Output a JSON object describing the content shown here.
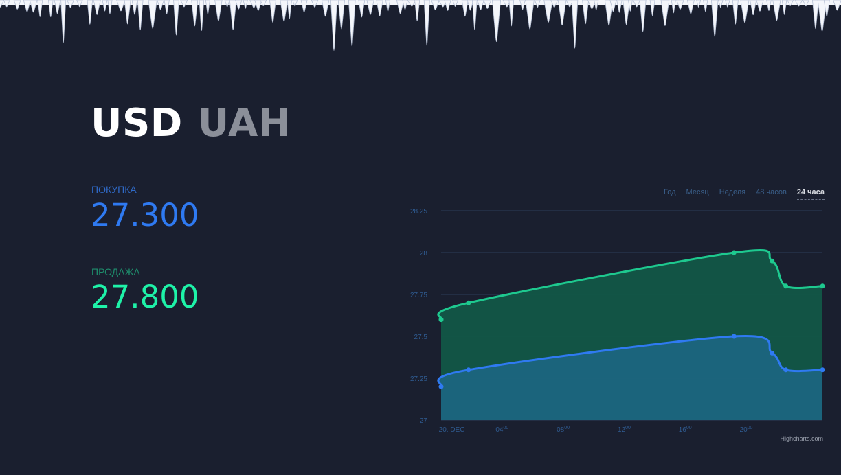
{
  "currency": {
    "base": "USD",
    "quote": "UAH"
  },
  "buy": {
    "label": "ПОКУПКА",
    "value": "27.300"
  },
  "sell": {
    "label": "ПРОДАЖА",
    "value": "27.800"
  },
  "ranges": [
    "Год",
    "Месяц",
    "Неделя",
    "48 часов",
    "24 часа"
  ],
  "active_range": "24 часа",
  "credit": "Highcharts.com",
  "colors": {
    "background": "#1a1f2f",
    "buy_line": "#2f7af2",
    "sell_line": "#1ec98f",
    "buy_fill": "#1c6580",
    "sell_fill": "#125747"
  },
  "chart_data": {
    "type": "area",
    "xlabel": "",
    "ylabel": "",
    "ylim": [
      27,
      28.25
    ],
    "yticks": [
      "27",
      "27.25",
      "27.5",
      "27.75",
      "28",
      "28.25"
    ],
    "xticks": [
      {
        "label": "20. Dec",
        "hour": 0.7
      },
      {
        "label": "04",
        "sup": "00",
        "hour": 4
      },
      {
        "label": "08",
        "sup": "00",
        "hour": 8
      },
      {
        "label": "12",
        "sup": "00",
        "hour": 12
      },
      {
        "label": "16",
        "sup": "00",
        "hour": 16
      },
      {
        "label": "20",
        "sup": "00",
        "hour": 20
      }
    ],
    "xrange_hours": [
      0,
      25
    ],
    "grid": true,
    "series": [
      {
        "key": "sell",
        "x": [
          0,
          1.8,
          19.2,
          21.7,
          22.6,
          25
        ],
        "values": [
          27.6,
          27.7,
          28.0,
          27.95,
          27.8,
          27.8
        ]
      },
      {
        "key": "buy",
        "x": [
          0,
          1.8,
          19.2,
          21.7,
          22.6,
          25
        ],
        "values": [
          27.2,
          27.3,
          27.5,
          27.4,
          27.3,
          27.3
        ]
      }
    ]
  }
}
